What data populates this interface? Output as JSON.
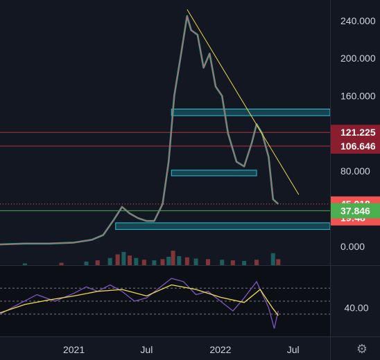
{
  "chart_data": {
    "type": "line",
    "price_axis": {
      "ticks": [
        "240.000",
        "200.000",
        "160.000",
        "80.000",
        "0.000"
      ],
      "tick_values": [
        240,
        200,
        160,
        80,
        0
      ],
      "ylim": [
        -20,
        262
      ]
    },
    "time_axis": {
      "ticks": [
        "2021",
        "Jul",
        "2022",
        "Jul"
      ],
      "tick_dates": [
        "2021-01-01",
        "2021-07-01",
        "2022-01-01",
        "2022-07-01"
      ],
      "xlim": [
        "2020-07-01",
        "2022-10-01"
      ]
    },
    "price_tags": [
      {
        "label": "121.225",
        "value": 121.225,
        "color": "#8b1e2e"
      },
      {
        "label": "106.646",
        "value": 106.646,
        "color": "#8b1e2e"
      },
      {
        "label": "45.018",
        "value": 45.018,
        "color": "#f05350",
        "countdown": "19:48"
      },
      {
        "label": "37.846",
        "value": 37.846,
        "color": "#4caf50"
      }
    ],
    "horizontal_lines": [
      {
        "value": 121.225,
        "color": "#b2343f"
      },
      {
        "value": 106.646,
        "color": "#b2343f"
      },
      {
        "value": 37.846,
        "color": "#4caf50"
      }
    ],
    "current_price_line": {
      "value": 45.018,
      "color": "#f05350"
    },
    "zones": [
      {
        "date_from": "2021-09-01",
        "date_to": "2022-10-01",
        "y_from": 139,
        "y_to": 146,
        "color": "#26c6da"
      },
      {
        "date_from": "2021-09-01",
        "date_to": "2022-04-01",
        "y_from": 75,
        "y_to": 81,
        "color": "#26c6da"
      },
      {
        "date_from": "2021-04-15",
        "date_to": "2022-10-01",
        "y_from": 18,
        "y_to": 25,
        "color": "#26c6da"
      }
    ],
    "trendline": {
      "from": {
        "date": "2021-10-10",
        "value": 252
      },
      "to": {
        "date": "2022-07-15",
        "value": 55
      },
      "color": "#f0d74a"
    },
    "price_series": {
      "name": "",
      "points": [
        [
          "2020-07-01",
          2
        ],
        [
          "2020-09-01",
          3
        ],
        [
          "2020-11-01",
          3
        ],
        [
          "2021-01-01",
          4
        ],
        [
          "2021-02-15",
          7
        ],
        [
          "2021-03-15",
          12
        ],
        [
          "2021-04-10",
          28
        ],
        [
          "2021-05-01",
          42
        ],
        [
          "2021-05-20",
          35
        ],
        [
          "2021-06-10",
          30
        ],
        [
          "2021-07-01",
          27
        ],
        [
          "2021-07-20",
          27
        ],
        [
          "2021-08-10",
          45
        ],
        [
          "2021-08-25",
          90
        ],
        [
          "2021-09-08",
          160
        ],
        [
          "2021-09-25",
          205
        ],
        [
          "2021-10-10",
          245
        ],
        [
          "2021-10-20",
          230
        ],
        [
          "2021-11-05",
          225
        ],
        [
          "2021-11-20",
          190
        ],
        [
          "2021-12-05",
          205
        ],
        [
          "2021-12-20",
          170
        ],
        [
          "2022-01-05",
          160
        ],
        [
          "2022-01-20",
          120
        ],
        [
          "2022-02-10",
          90
        ],
        [
          "2022-03-01",
          85
        ],
        [
          "2022-03-20",
          110
        ],
        [
          "2022-04-01",
          130
        ],
        [
          "2022-04-15",
          120
        ],
        [
          "2022-05-01",
          95
        ],
        [
          "2022-05-12",
          50
        ],
        [
          "2022-05-25",
          45
        ]
      ]
    },
    "volume": {
      "ylim": [
        0,
        30
      ],
      "bars": [
        [
          "2020-09-01",
          3
        ],
        [
          "2020-12-01",
          4
        ],
        [
          "2021-02-01",
          6
        ],
        [
          "2021-03-01",
          8
        ],
        [
          "2021-04-01",
          12
        ],
        [
          "2021-04-20",
          18
        ],
        [
          "2021-05-05",
          22
        ],
        [
          "2021-05-20",
          16
        ],
        [
          "2021-06-05",
          12
        ],
        [
          "2021-06-25",
          9
        ],
        [
          "2021-07-20",
          8
        ],
        [
          "2021-08-10",
          10
        ],
        [
          "2021-08-25",
          14
        ],
        [
          "2021-09-05",
          24
        ],
        [
          "2021-09-20",
          15
        ],
        [
          "2021-10-10",
          13
        ],
        [
          "2021-11-01",
          11
        ],
        [
          "2021-12-01",
          10
        ],
        [
          "2022-01-05",
          9
        ],
        [
          "2022-02-01",
          8
        ],
        [
          "2022-03-01",
          7
        ],
        [
          "2022-04-01",
          9
        ],
        [
          "2022-05-12",
          20
        ],
        [
          "2022-05-25",
          10
        ]
      ]
    },
    "rsi": {
      "tick_label": "40.00",
      "tick_value": 40,
      "ylim": [
        0,
        100
      ],
      "guide_levels": [
        70,
        50,
        30
      ],
      "rsi_color": "#7e57c2",
      "ma_color": "#f5e147",
      "rsi_points": [
        [
          "2020-07-01",
          30
        ],
        [
          "2020-08-15",
          45
        ],
        [
          "2020-10-01",
          60
        ],
        [
          "2020-11-15",
          50
        ],
        [
          "2021-01-01",
          62
        ],
        [
          "2021-02-01",
          72
        ],
        [
          "2021-03-01",
          65
        ],
        [
          "2021-04-01",
          75
        ],
        [
          "2021-05-01",
          65
        ],
        [
          "2021-06-01",
          50
        ],
        [
          "2021-07-01",
          55
        ],
        [
          "2021-08-01",
          70
        ],
        [
          "2021-09-01",
          85
        ],
        [
          "2021-10-01",
          80
        ],
        [
          "2021-11-01",
          60
        ],
        [
          "2021-12-01",
          65
        ],
        [
          "2022-01-01",
          50
        ],
        [
          "2022-02-01",
          35
        ],
        [
          "2022-03-01",
          55
        ],
        [
          "2022-04-01",
          80
        ],
        [
          "2022-05-01",
          40
        ],
        [
          "2022-05-15",
          8
        ],
        [
          "2022-05-25",
          35
        ]
      ],
      "ma_points": [
        [
          "2020-07-01",
          32
        ],
        [
          "2020-09-01",
          45
        ],
        [
          "2020-11-01",
          52
        ],
        [
          "2021-01-01",
          58
        ],
        [
          "2021-03-01",
          65
        ],
        [
          "2021-05-01",
          68
        ],
        [
          "2021-07-01",
          58
        ],
        [
          "2021-09-01",
          75
        ],
        [
          "2021-11-01",
          68
        ],
        [
          "2022-01-01",
          56
        ],
        [
          "2022-03-01",
          48
        ],
        [
          "2022-04-10",
          68
        ],
        [
          "2022-05-10",
          40
        ],
        [
          "2022-05-25",
          28
        ]
      ]
    }
  }
}
